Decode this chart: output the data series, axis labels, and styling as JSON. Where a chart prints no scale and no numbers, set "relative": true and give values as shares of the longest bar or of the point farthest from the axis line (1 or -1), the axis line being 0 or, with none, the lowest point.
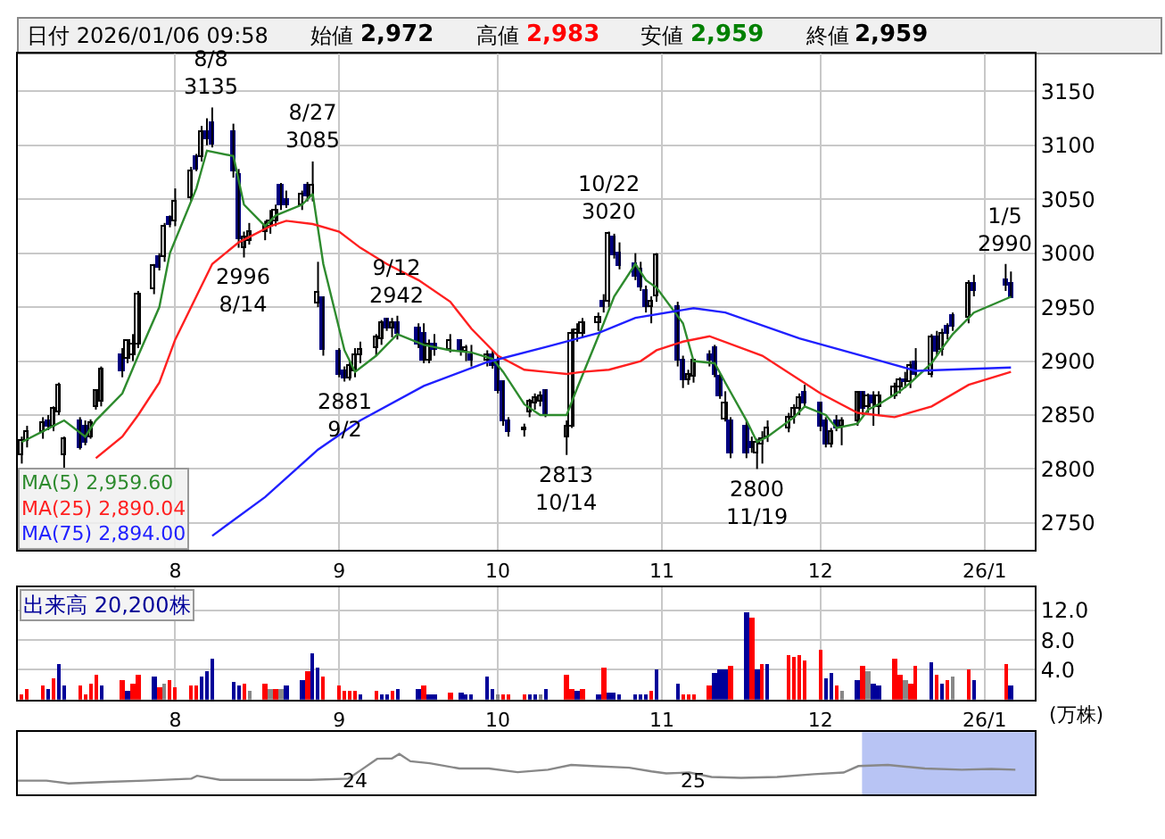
{
  "chart_data": [
    {
      "type": "candlestick",
      "ylim": [
        2725,
        3185
      ],
      "yticks": [
        2750,
        2800,
        2850,
        2900,
        2950,
        3000,
        3050,
        3100,
        3150
      ],
      "xticks": [
        {
          "value": "2025-08-01",
          "label": "8"
        },
        {
          "value": "2025-09-01",
          "label": "9"
        },
        {
          "value": "2025-10-01",
          "label": "10"
        },
        {
          "value": "2025-11-01",
          "label": "11"
        },
        {
          "value": "2025-12-01",
          "label": "12"
        },
        {
          "value": "2026-01-01",
          "label": "26/1"
        }
      ],
      "grid": true,
      "legend": "bottom left",
      "xlim": [
        "2025-07-02T06:00",
        "2026-01-10T12:00"
      ],
      "x": [
        "2025-07-03",
        "2025-07-04",
        "2025-07-07",
        "2025-07-08",
        "2025-07-09",
        "2025-07-10",
        "2025-07-11",
        "2025-07-14",
        "2025-07-15",
        "2025-07-16",
        "2025-07-17",
        "2025-07-18",
        "2025-07-22",
        "2025-07-23",
        "2025-07-24",
        "2025-07-25",
        "2025-07-28",
        "2025-07-29",
        "2025-07-30",
        "2025-07-31",
        "2025-08-01",
        "2025-08-04",
        "2025-08-05",
        "2025-08-06",
        "2025-08-07",
        "2025-08-08",
        "2025-08-12",
        "2025-08-13",
        "2025-08-14",
        "2025-08-15",
        "2025-08-18",
        "2025-08-19",
        "2025-08-20",
        "2025-08-21",
        "2025-08-22",
        "2025-08-25",
        "2025-08-26",
        "2025-08-27",
        "2025-08-28",
        "2025-08-29",
        "2025-09-01",
        "2025-09-02",
        "2025-09-03",
        "2025-09-04",
        "2025-09-05",
        "2025-09-08",
        "2025-09-09",
        "2025-09-10",
        "2025-09-11",
        "2025-09-12",
        "2025-09-16",
        "2025-09-17",
        "2025-09-18",
        "2025-09-19",
        "2025-09-22",
        "2025-09-24",
        "2025-09-25",
        "2025-09-26",
        "2025-09-29",
        "2025-09-30",
        "2025-10-01",
        "2025-10-02",
        "2025-10-03",
        "2025-10-06",
        "2025-10-07",
        "2025-10-08",
        "2025-10-09",
        "2025-10-10",
        "2025-10-14",
        "2025-10-15",
        "2025-10-16",
        "2025-10-17",
        "2025-10-20",
        "2025-10-21",
        "2025-10-22",
        "2025-10-23",
        "2025-10-24",
        "2025-10-27",
        "2025-10-28",
        "2025-10-29",
        "2025-10-30",
        "2025-10-31",
        "2025-11-04",
        "2025-11-05",
        "2025-11-06",
        "2025-11-07",
        "2025-11-10",
        "2025-11-11",
        "2025-11-12",
        "2025-11-13",
        "2025-11-14",
        "2025-11-17",
        "2025-11-18",
        "2025-11-19",
        "2025-11-20",
        "2025-11-21",
        "2025-11-25",
        "2025-11-26",
        "2025-11-27",
        "2025-11-28",
        "2025-12-01",
        "2025-12-02",
        "2025-12-03",
        "2025-12-04",
        "2025-12-05",
        "2025-12-08",
        "2025-12-09",
        "2025-12-10",
        "2025-12-11",
        "2025-12-12",
        "2025-12-15",
        "2025-12-16",
        "2025-12-17",
        "2025-12-18",
        "2025-12-19",
        "2025-12-22",
        "2025-12-23",
        "2025-12-24",
        "2025-12-25",
        "2025-12-26",
        "2025-12-29",
        "2025-12-30",
        "2026-01-05",
        "2026-01-06"
      ],
      "series": [
        {
          "type": "candlestick",
          "colors": [
            "#ffffff",
            "#ffffff",
            "#ffffff",
            "#000080",
            "#ffffff",
            "#ffffff",
            "#ffffff",
            "#000080",
            "#000080",
            "#ffffff",
            "#ffffff",
            "#ffffff",
            "#000080",
            "#ffffff",
            "#ffffff",
            "#ffffff",
            "#ffffff",
            "#000080",
            "#ffffff",
            "#000080",
            "#ffffff",
            "#ffffff",
            "#000080",
            "#ffffff",
            "#000080",
            "#000080",
            "#000080",
            "#000080",
            "#ffffff",
            "#ffffff",
            "#ffffff",
            "#ffffff",
            "#ffffff",
            "#000080",
            "#000080",
            "#ffffff",
            "#000080",
            "#ffffff",
            "#ffffff",
            "#000080",
            "#000080",
            "#000080",
            "#ffffff",
            "#ffffff",
            "#ffffff",
            "#ffffff",
            "#ffffff",
            "#000080",
            "#ffffff",
            "#000080",
            "#000080",
            "#000080",
            "#ffffff",
            "#000080",
            "#ffffff",
            "#000080",
            "#ffffff",
            "#000080",
            "#ffffff",
            "#000080",
            "#000080",
            "#000080",
            "#000080",
            "#ffffff",
            "#ffffff",
            "#ffffff",
            "#ffffff",
            "#000080",
            "#ffffff",
            "#ffffff",
            "#ffffff",
            "#ffffff",
            "#ffffff",
            "#000080",
            "#ffffff",
            "#000080",
            "#000080",
            "#000080",
            "#000080",
            "#000080",
            "#ffffff",
            "#ffffff",
            "#000080",
            "#000080",
            "#ffffff",
            "#ffffff",
            "#000080",
            "#000080",
            "#000080",
            "#ffffff",
            "#000080",
            "#000080",
            "#000080",
            "#ffffff",
            "#ffffff",
            "#ffffff",
            "#ffffff",
            "#ffffff",
            "#ffffff",
            "#000080",
            "#000080",
            "#000080",
            "#ffffff",
            "#000080",
            "#ffffff",
            "#ffffff",
            "#000080",
            "#ffffff",
            "#000080",
            "#ffffff",
            "#ffffff",
            "#ffffff",
            "#000080",
            "#ffffff",
            "#000080",
            "#ffffff",
            "#000080",
            "#ffffff",
            "#000080",
            "#000080",
            "#ffffff",
            "#000080",
            "#000080",
            "#000080"
          ],
          "ohlc": [
            [
              2812,
              2830,
              2805,
              2826
            ],
            [
              2826,
              2840,
              2820,
              2835
            ],
            [
              2835,
              2848,
              2828,
              2842
            ],
            [
              2845,
              2850,
              2836,
              2840
            ],
            [
              2840,
              2858,
              2835,
              2855
            ],
            [
              2853,
              2880,
              2850,
              2877
            ],
            [
              2812,
              2830,
              2800,
              2828
            ],
            [
              2845,
              2848,
              2818,
              2820
            ],
            [
              2840,
              2845,
              2822,
              2824
            ],
            [
              2830,
              2846,
              2828,
              2842
            ],
            [
              2858,
              2874,
              2855,
              2872
            ],
            [
              2862,
              2895,
              2858,
              2893
            ],
            [
              2905,
              2912,
              2885,
              2890
            ],
            [
              2902,
              2920,
              2898,
              2918
            ],
            [
              2905,
              2925,
              2900,
              2916
            ],
            [
              2915,
              2965,
              2912,
              2961
            ],
            [
              2967,
              2990,
              2962,
              2988
            ],
            [
              2997,
              3000,
              2984,
              2986
            ],
            [
              2997,
              3028,
              2992,
              3024
            ],
            [
              3032,
              3035,
              3024,
              3027
            ],
            [
              3029,
              3060,
              3025,
              3048
            ],
            [
              3051,
              3080,
              3048,
              3075
            ],
            [
              3089,
              3092,
              3076,
              3078
            ],
            [
              3089,
              3118,
              3085,
              3113
            ],
            [
              3113,
              3125,
              3100,
              3105
            ],
            [
              3120,
              3135,
              3098,
              3100
            ],
            [
              3113,
              3120,
              3070,
              3075
            ],
            [
              3072,
              3078,
              3005,
              3013
            ],
            [
              3005,
              3020,
              2996,
              3015
            ],
            [
              3012,
              3028,
              3008,
              3020
            ],
            [
              3020,
              3030,
              3012,
              3025
            ],
            [
              3025,
              3040,
              3018,
              3030
            ],
            [
              3030,
              3045,
              3025,
              3040
            ],
            [
              3062,
              3065,
              3040,
              3045
            ],
            [
              3050,
              3058,
              3042,
              3045
            ],
            [
              3045,
              3058,
              3040,
              3055
            ],
            [
              3062,
              3066,
              3048,
              3052
            ],
            [
              3052,
              3085,
              3048,
              3062
            ],
            [
              2953,
              2992,
              2950,
              2964
            ],
            [
              2959,
              2960,
              2905,
              2910
            ],
            [
              2908,
              2912,
              2885,
              2888
            ],
            [
              2890,
              2895,
              2881,
              2884
            ],
            [
              2884,
              2900,
              2882,
              2895
            ],
            [
              2890,
              2912,
              2885,
              2905
            ],
            [
              2905,
              2918,
              2898,
              2910
            ],
            [
              2912,
              2925,
              2905,
              2922
            ],
            [
              2920,
              2938,
              2915,
              2935
            ],
            [
              2938,
              2940,
              2928,
              2930
            ],
            [
              2930,
              2940,
              2922,
              2935
            ],
            [
              2935,
              2942,
              2920,
              2925
            ],
            [
              2930,
              2935,
              2912,
              2915
            ],
            [
              2925,
              2935,
              2898,
              2900
            ],
            [
              2900,
              2920,
              2898,
              2915
            ],
            [
              2915,
              2925,
              2905,
              2910
            ],
            [
              2910,
              2925,
              2908,
              2918
            ],
            [
              2918,
              2920,
              2905,
              2908
            ],
            [
              2908,
              2915,
              2900,
              2912
            ],
            [
              2905,
              2915,
              2895,
              2900
            ],
            [
              2900,
              2910,
              2895,
              2905
            ],
            [
              2905,
              2910,
              2893,
              2896
            ],
            [
              2900,
              2905,
              2870,
              2872
            ],
            [
              2880,
              2882,
              2840,
              2845
            ],
            [
              2845,
              2848,
              2830,
              2835
            ],
            [
              2836,
              2842,
              2830,
              2838
            ],
            [
              2852,
              2865,
              2848,
              2862
            ],
            [
              2860,
              2870,
              2855,
              2866
            ],
            [
              2862,
              2872,
              2858,
              2868
            ],
            [
              2872,
              2874,
              2848,
              2850
            ],
            [
              2830,
              2845,
              2813,
              2840
            ],
            [
              2840,
              2930,
              2838,
              2925
            ],
            [
              2925,
              2935,
              2918,
              2928
            ],
            [
              2926,
              2940,
              2922,
              2935
            ],
            [
              2935,
              2945,
              2928,
              2940
            ],
            [
              2955,
              2962,
              2945,
              2950
            ],
            [
              2955,
              3020,
              2950,
              3018
            ],
            [
              3015,
              3018,
              2995,
              2998
            ],
            [
              3000,
              3010,
              2985,
              2988
            ],
            [
              2990,
              3000,
              2975,
              2978
            ],
            [
              2985,
              2992,
              2965,
              2968
            ],
            [
              2965,
              2970,
              2945,
              2950
            ],
            [
              2950,
              2960,
              2935,
              2955
            ],
            [
              2960,
              3000,
              2955,
              2998
            ],
            [
              2950,
              2955,
              2895,
              2900
            ],
            [
              2900,
              2905,
              2875,
              2882
            ],
            [
              2882,
              2892,
              2878,
              2888
            ],
            [
              2885,
              2902,
              2880,
              2900
            ],
            [
              2905,
              2910,
              2895,
              2900
            ],
            [
              2912,
              2915,
              2885,
              2888
            ],
            [
              2885,
              2888,
              2865,
              2868
            ],
            [
              2846,
              2872,
              2844,
              2861
            ],
            [
              2845,
              2848,
              2810,
              2815
            ],
            [
              2840,
              2845,
              2810,
              2815
            ],
            [
              2825,
              2830,
              2815,
              2820
            ],
            [
              2815,
              2828,
              2800,
              2825
            ],
            [
              2822,
              2835,
              2805,
              2828
            ],
            [
              2830,
              2845,
              2825,
              2838
            ],
            [
              2838,
              2852,
              2834,
              2848
            ],
            [
              2848,
              2860,
              2842,
              2855
            ],
            [
              2855,
              2870,
              2850,
              2865
            ],
            [
              2870,
              2878,
              2858,
              2860
            ],
            [
              2860,
              2862,
              2835,
              2840
            ],
            [
              2845,
              2848,
              2820,
              2822
            ],
            [
              2822,
              2838,
              2820,
              2835
            ],
            [
              2845,
              2850,
              2835,
              2838
            ],
            [
              2840,
              2848,
              2822,
              2845
            ],
            [
              2845,
              2872,
              2840,
              2870
            ],
            [
              2870,
              2872,
              2850,
              2855
            ],
            [
              2858,
              2870,
              2852,
              2868
            ],
            [
              2868,
              2872,
              2840,
              2860
            ],
            [
              2858,
              2872,
              2850,
              2868
            ],
            [
              2868,
              2880,
              2865,
              2875
            ],
            [
              2875,
              2885,
              2870,
              2882
            ],
            [
              2882,
              2890,
              2875,
              2880
            ],
            [
              2880,
              2900,
              2875,
              2895
            ],
            [
              2898,
              2912,
              2885,
              2888
            ],
            [
              2888,
              2925,
              2885,
              2922
            ],
            [
              2922,
              2928,
              2905,
              2908
            ],
            [
              2910,
              2930,
              2905,
              2925
            ],
            [
              2932,
              2935,
              2920,
              2925
            ],
            [
              2942,
              2945,
              2928,
              2932
            ],
            [
              2940,
              2975,
              2935,
              2972
            ],
            [
              2972,
              2980,
              2960,
              2965
            ],
            [
              2975,
              2990,
              2965,
              2970
            ],
            [
              2972,
              2983,
              2959,
              2959
            ]
          ]
        },
        {
          "type": "line",
          "name": "MA(5) 2,959.60",
          "color": "#2e8b2e",
          "x": [
            "2025-07-03",
            "2025-07-09",
            "2025-07-11",
            "2025-07-15",
            "2025-07-17",
            "2025-07-22",
            "2025-07-25",
            "2025-07-29",
            "2025-07-31",
            "2025-08-05",
            "2025-08-07",
            "2025-08-12",
            "2025-08-14",
            "2025-08-18",
            "2025-08-20",
            "2025-08-25",
            "2025-08-27",
            "2025-08-29",
            "2025-09-02",
            "2025-09-04",
            "2025-09-08",
            "2025-09-10",
            "2025-09-12",
            "2025-09-17",
            "2025-09-22",
            "2025-09-26",
            "2025-09-30",
            "2025-10-02",
            "2025-10-06",
            "2025-10-09",
            "2025-10-14",
            "2025-10-16",
            "2025-10-21",
            "2025-10-23",
            "2025-10-27",
            "2025-10-29",
            "2025-10-31",
            "2025-11-05",
            "2025-11-07",
            "2025-11-11",
            "2025-11-13",
            "2025-11-17",
            "2025-11-19",
            "2025-11-21",
            "2025-11-26",
            "2025-11-28",
            "2025-12-02",
            "2025-12-04",
            "2025-12-08",
            "2025-12-10",
            "2025-12-12",
            "2025-12-16",
            "2025-12-18",
            "2025-12-22",
            "2025-12-24",
            "2025-12-26",
            "2025-12-30",
            "2026-01-06"
          ],
          "values": [
            2825,
            2840,
            2845,
            2830,
            2845,
            2870,
            2905,
            2950,
            3000,
            3060,
            3095,
            3090,
            3045,
            3025,
            3035,
            3045,
            3055,
            2990,
            2910,
            2890,
            2905,
            2915,
            2925,
            2915,
            2910,
            2908,
            2902,
            2890,
            2860,
            2850,
            2850,
            2875,
            2935,
            2960,
            2990,
            2975,
            2968,
            2935,
            2900,
            2898,
            2880,
            2845,
            2825,
            2830,
            2848,
            2858,
            2850,
            2838,
            2842,
            2855,
            2860,
            2872,
            2880,
            2898,
            2912,
            2925,
            2945,
            2959.6
          ]
        },
        {
          "type": "line",
          "name": "MA(25) 2,890.04",
          "color": "#ff2020",
          "x": [
            "2025-07-17",
            "2025-07-22",
            "2025-07-25",
            "2025-07-29",
            "2025-08-01",
            "2025-08-05",
            "2025-08-08",
            "2025-08-13",
            "2025-08-19",
            "2025-08-22",
            "2025-08-27",
            "2025-09-01",
            "2025-09-05",
            "2025-09-10",
            "2025-09-16",
            "2025-09-22",
            "2025-09-26",
            "2025-10-01",
            "2025-10-06",
            "2025-10-10",
            "2025-10-14",
            "2025-10-17",
            "2025-10-22",
            "2025-10-28",
            "2025-10-31",
            "2025-11-05",
            "2025-11-10",
            "2025-11-20",
            "2025-12-01",
            "2025-12-08",
            "2025-12-15",
            "2025-12-22",
            "2025-12-29",
            "2026-01-06"
          ],
          "values": [
            2810,
            2830,
            2850,
            2880,
            2920,
            2960,
            2990,
            3010,
            3025,
            3030,
            3027,
            3020,
            3005,
            2990,
            2975,
            2955,
            2930,
            2905,
            2892,
            2890,
            2888,
            2890,
            2892,
            2900,
            2910,
            2918,
            2923,
            2905,
            2870,
            2852,
            2848,
            2858,
            2878,
            2890.04
          ]
        },
        {
          "type": "line",
          "name": "MA(75) 2,894.00",
          "color": "#2020ff",
          "x": [
            "2025-08-08",
            "2025-08-18",
            "2025-08-28",
            "2025-09-05",
            "2025-09-17",
            "2025-09-29",
            "2025-10-10",
            "2025-10-20",
            "2025-10-27",
            "2025-11-07",
            "2025-11-13",
            "2025-11-27",
            "2025-12-11",
            "2025-12-19",
            "2026-01-06"
          ],
          "values": [
            2738,
            2774,
            2818,
            2845,
            2877,
            2899,
            2913,
            2926,
            2940,
            2949,
            2945,
            2921,
            2902,
            2891,
            2894
          ]
        }
      ],
      "annotations": [
        "日付 2026/01/06 09:58",
        "始値",
        "2,972",
        "高値",
        "2,983",
        "安値",
        "2,959",
        "終値",
        "2,959",
        {
          "text": "8/8\n3135",
          "x": "2025-08-08",
          "y": 3135
        },
        {
          "text": "2996\n8/14",
          "x": "2025-08-14",
          "y": 2996
        },
        {
          "text": "8/27\n3085",
          "x": "2025-08-27",
          "y": 3085
        },
        {
          "text": "2881\n9/2",
          "x": "2025-09-02",
          "y": 2881
        },
        {
          "text": "9/12\n2942",
          "x": "2025-09-12",
          "y": 2942
        },
        {
          "text": "2813\n10/14",
          "x": "2025-10-14",
          "y": 2813
        },
        {
          "text": "10/22\n3020",
          "x": "2025-10-22",
          "y": 3020
        },
        {
          "text": "2800\n11/19",
          "x": "2025-11-19",
          "y": 2800
        },
        {
          "text": "1/5\n2990",
          "x": "2026-01-05",
          "y": 2990
        }
      ]
    },
    {
      "type": "bar",
      "title": "出来高 20,200株",
      "ylabel": "(万株)",
      "ylim": [
        0,
        15.1
      ],
      "yticks": [
        {
          "value": 4,
          "label": "4.0"
        },
        {
          "value": 8,
          "label": "8.0"
        },
        {
          "value": 12,
          "label": "12.0"
        }
      ],
      "grid": true,
      "xlim": [
        "2025-07-02T06:00",
        "2026-01-10T12:00"
      ],
      "xticks": [
        {
          "value": "2025-08-01",
          "label": "8"
        },
        {
          "value": "2025-09-01",
          "label": "9"
        },
        {
          "value": "2025-10-01",
          "label": "10"
        },
        {
          "value": "2025-11-01",
          "label": "11"
        },
        {
          "value": "2025-12-01",
          "label": "12"
        },
        {
          "value": "2026-01-01",
          "label": "26/1"
        }
      ],
      "x": [
        "2025-07-03",
        "2025-07-04",
        "2025-07-07",
        "2025-07-08",
        "2025-07-09",
        "2025-07-10",
        "2025-07-11",
        "2025-07-14",
        "2025-07-15",
        "2025-07-16",
        "2025-07-17",
        "2025-07-18",
        "2025-07-22",
        "2025-07-23",
        "2025-07-24",
        "2025-07-25",
        "2025-07-28",
        "2025-07-29",
        "2025-07-30",
        "2025-07-31",
        "2025-08-01",
        "2025-08-04",
        "2025-08-05",
        "2025-08-06",
        "2025-08-07",
        "2025-08-08",
        "2025-08-12",
        "2025-08-13",
        "2025-08-14",
        "2025-08-15",
        "2025-08-18",
        "2025-08-19",
        "2025-08-20",
        "2025-08-21",
        "2025-08-22",
        "2025-08-25",
        "2025-08-26",
        "2025-08-27",
        "2025-08-28",
        "2025-08-29",
        "2025-09-01",
        "2025-09-02",
        "2025-09-03",
        "2025-09-04",
        "2025-09-05",
        "2025-09-08",
        "2025-09-09",
        "2025-09-10",
        "2025-09-11",
        "2025-09-12",
        "2025-09-16",
        "2025-09-17",
        "2025-09-18",
        "2025-09-19",
        "2025-09-22",
        "2025-09-24",
        "2025-09-25",
        "2025-09-26",
        "2025-09-29",
        "2025-09-30",
        "2025-10-01",
        "2025-10-02",
        "2025-10-03",
        "2025-10-06",
        "2025-10-07",
        "2025-10-08",
        "2025-10-09",
        "2025-10-10",
        "2025-10-14",
        "2025-10-15",
        "2025-10-16",
        "2025-10-17",
        "2025-10-20",
        "2025-10-21",
        "2025-10-22",
        "2025-10-23",
        "2025-10-24",
        "2025-10-27",
        "2025-10-28",
        "2025-10-29",
        "2025-10-30",
        "2025-10-31",
        "2025-11-04",
        "2025-11-05",
        "2025-11-06",
        "2025-11-07",
        "2025-11-10",
        "2025-11-11",
        "2025-11-12",
        "2025-11-13",
        "2025-11-14",
        "2025-11-17",
        "2025-11-18",
        "2025-11-19",
        "2025-11-20",
        "2025-11-21",
        "2025-11-25",
        "2025-11-26",
        "2025-11-27",
        "2025-11-28",
        "2025-12-01",
        "2025-12-02",
        "2025-12-03",
        "2025-12-04",
        "2025-12-05",
        "2025-12-08",
        "2025-12-09",
        "2025-12-10",
        "2025-12-11",
        "2025-12-12",
        "2025-12-15",
        "2025-12-16",
        "2025-12-17",
        "2025-12-18",
        "2025-12-19",
        "2025-12-22",
        "2025-12-23",
        "2025-12-24",
        "2025-12-25",
        "2025-12-26",
        "2025-12-29",
        "2025-12-30",
        "2026-01-05",
        "2026-01-06"
      ],
      "values": [
        0.8,
        1.3,
        1.8,
        1.3,
        2.9,
        4.8,
        1.8,
        2.0,
        0.7,
        2.1,
        3.3,
        1.8,
        2.6,
        1.1,
        2.1,
        3.3,
        3.2,
        1.6,
        2.1,
        2.6,
        1.6,
        1.8,
        1.8,
        3.2,
        3.8,
        5.6,
        2.4,
        1.8,
        2.1,
        1.1,
        2.1,
        1.3,
        1.4,
        1.3,
        2.0,
        2.5,
        3.8,
        6.2,
        4.2,
        3.0,
        1.8,
        1.1,
        1.1,
        1.1,
        0.8,
        1.2,
        0.6,
        0.7,
        1.2,
        1.5,
        1.5,
        2.0,
        0.8,
        0.8,
        1.0,
        1.0,
        0.8,
        0.8,
        3.2,
        1.3,
        0.7,
        0.8,
        0.8,
        0.8,
        0.7,
        0.6,
        0.7,
        1.3,
        3.3,
        1.3,
        1.2,
        1.5,
        0.8,
        4.2,
        1.0,
        1.0,
        0.8,
        0.8,
        0.8,
        0.8,
        1.2,
        4.0,
        2.2,
        0.8,
        0.8,
        0.8,
        2.0,
        3.6,
        4.0,
        4.0,
        4.5,
        11.8,
        11.1,
        4.1,
        4.7,
        4.7,
        6.0,
        5.7,
        6.0,
        5.3,
        6.7,
        2.9,
        3.6,
        2.0,
        1.1,
        2.7,
        4.5,
        3.8,
        2.1,
        2.0,
        5.6,
        3.3,
        2.7,
        2.2,
        4.5,
        5.1,
        3.4,
        2.2,
        2.6,
        3.2,
        4.1,
        2.7,
        4.7,
        2.0
      ],
      "colors": [
        "#ff0000",
        "#ff0000",
        "#ff0000",
        "#000099",
        "#ff0000",
        "#000099",
        "#000099",
        "#ff0000",
        "#ff0000",
        "#ff0000",
        "#ff0000",
        "#000099",
        "#ff0000",
        "#000099",
        "#ff0000",
        "#ff0000",
        "#000099",
        "#ff0000",
        "#888888",
        "#ff0000",
        "#ff0000",
        "#ff0000",
        "#ff0000",
        "#000099",
        "#000099",
        "#000099",
        "#000099",
        "#000099",
        "#ff0000",
        "#888888",
        "#ff0000",
        "#888888",
        "#ff0000",
        "#888888",
        "#000099",
        "#000099",
        "#ff0000",
        "#000099",
        "#000099",
        "#ff0000",
        "#ff0000",
        "#ff0000",
        "#ff0000",
        "#ff0000",
        "#000099",
        "#ff0000",
        "#000099",
        "#000099",
        "#ff0000",
        "#000099",
        "#000099",
        "#ff0000",
        "#000099",
        "#000099",
        "#ff0000",
        "#000099",
        "#000099",
        "#000099",
        "#000099",
        "#000099",
        "#888888",
        "#ff0000",
        "#ff0000",
        "#ff0000",
        "#000099",
        "#000099",
        "#888888",
        "#000099",
        "#ff0000",
        "#ff0000",
        "#000099",
        "#ff0000",
        "#000099",
        "#ff0000",
        "#000099",
        "#000099",
        "#000099",
        "#000099",
        "#000099",
        "#000099",
        "#ff0000",
        "#000099",
        "#000099",
        "#ff0000",
        "#ff0000",
        "#ff0000",
        "#ff0000",
        "#000099",
        "#000099",
        "#000099",
        "#ff0000",
        "#000099",
        "#ff0000",
        "#000099",
        "#ff0000",
        "#000099",
        "#ff0000",
        "#ff0000",
        "#ff0000",
        "#ff0000",
        "#ff0000",
        "#000099",
        "#000099",
        "#ff0000",
        "#888888",
        "#000099",
        "#ff0000",
        "#888888",
        "#000099",
        "#000099",
        "#ff0000",
        "#ff0000",
        "#888888",
        "#ff0000",
        "#ff0000",
        "#000099",
        "#ff0000",
        "#000099",
        "#ff0000",
        "#888888",
        "#ff0000",
        "#000099",
        "#ff0000",
        "#000099"
      ]
    },
    {
      "type": "line",
      "relative": true,
      "tick_labels": "x",
      "color": "#888888",
      "xlim": [
        "2023-01-01",
        "2026-01-06"
      ],
      "xticks": [
        {
          "value": "2024-01-01",
          "label": "24"
        },
        {
          "value": "2025-01-01",
          "label": "25"
        }
      ],
      "x": [
        "2023-01-01",
        "2023-02-01",
        "2023-02-25",
        "2023-04-08",
        "2023-05-18",
        "2023-07-08",
        "2023-07-14",
        "2023-08-08",
        "2023-09-26",
        "2023-11-14",
        "2023-12-25",
        "2024-01-08",
        "2024-01-25",
        "2024-02-10",
        "2024-02-18",
        "2024-03-01",
        "2024-03-22",
        "2024-04-23",
        "2024-05-25",
        "2024-06-25",
        "2024-07-28",
        "2024-08-22",
        "2024-09-14",
        "2024-10-24",
        "2024-11-17",
        "2024-12-03",
        "2024-12-28",
        "2025-01-21",
        "2025-02-22",
        "2025-04-02",
        "2025-05-12",
        "2025-06-13",
        "2025-06-29",
        "2025-07-31",
        "2025-09-09",
        "2025-10-19",
        "2025-11-20",
        "2025-12-16"
      ],
      "values": [
        0.34,
        0.34,
        0.27,
        0.31,
        0.34,
        0.39,
        0.46,
        0.36,
        0.36,
        0.36,
        0.39,
        0.61,
        0.88,
        0.89,
        1,
        0.82,
        0.77,
        0.64,
        0.64,
        0.55,
        0.61,
        0.73,
        0.7,
        0.66,
        0.57,
        0.52,
        0.54,
        0.43,
        0.41,
        0.43,
        0.5,
        0.54,
        0.7,
        0.73,
        0.64,
        0.61,
        0.63,
        0.61
      ],
      "bands": [
        {
          "axis": "x",
          "from": "2025-07-03",
          "to": "2026-01-06",
          "color": "#b8c4f4"
        }
      ]
    }
  ]
}
